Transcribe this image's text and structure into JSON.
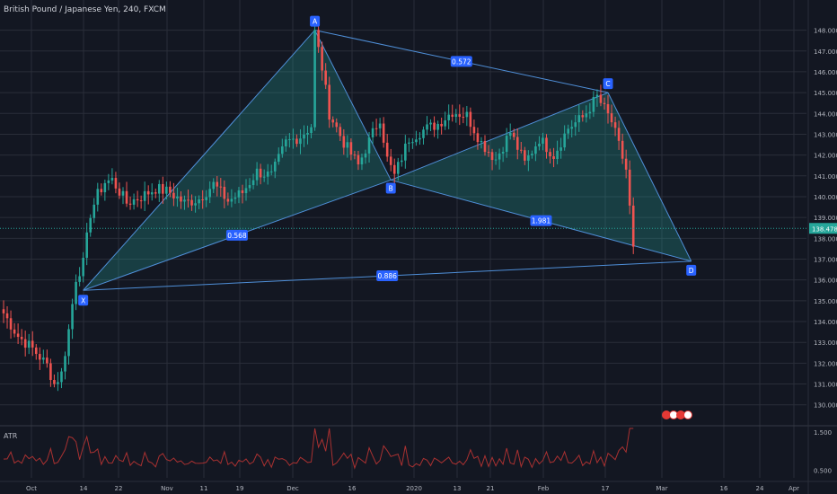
{
  "header": {
    "title": "British Pound / Japanese Yen, 240, FXCM"
  },
  "indicator": {
    "label": "ATR"
  },
  "chart_data": [
    {
      "type": "candlestick",
      "price_axis": {
        "range": [
          129.6,
          148.5
        ],
        "tick_labels": [
          "130.000",
          "131.000",
          "132.000",
          "133.000",
          "134.000",
          "135.000",
          "136.000",
          "137.000",
          "138.000",
          "139.000",
          "140.000",
          "141.000",
          "142.000",
          "143.000",
          "144.000",
          "145.000",
          "146.000",
          "147.000",
          "148.000"
        ]
      },
      "time_axis": {
        "tick_labels": [
          "Oct",
          "14",
          "22",
          "Nov",
          "11",
          "19",
          "Dec",
          "16",
          "2020",
          "13",
          "21",
          "Feb",
          "17",
          "Mar",
          "16",
          "24",
          "Apr"
        ]
      },
      "last_price": "138.478",
      "anchors": [
        {
          "t": 0,
          "close": 134.4
        },
        {
          "t": 4,
          "close": 133.3
        },
        {
          "t": 8,
          "close": 132.7
        },
        {
          "t": 12,
          "close": 131.9
        },
        {
          "t": 14,
          "close": 131.0
        },
        {
          "t": 16,
          "close": 131.5
        },
        {
          "t": 18,
          "close": 133.6
        },
        {
          "t": 20,
          "close": 136.1
        },
        {
          "t": 22,
          "close": 136.8
        },
        {
          "t": 24,
          "close": 139.2
        },
        {
          "t": 26,
          "close": 140.1
        },
        {
          "t": 28,
          "close": 140.7
        },
        {
          "t": 30,
          "close": 140.8
        },
        {
          "t": 34,
          "close": 139.7
        },
        {
          "t": 38,
          "close": 140.0
        },
        {
          "t": 42,
          "close": 140.4
        },
        {
          "t": 46,
          "close": 140.2
        },
        {
          "t": 50,
          "close": 139.7
        },
        {
          "t": 54,
          "close": 139.9
        },
        {
          "t": 58,
          "close": 140.6
        },
        {
          "t": 62,
          "close": 139.8
        },
        {
          "t": 66,
          "close": 140.2
        },
        {
          "t": 70,
          "close": 141.2
        },
        {
          "t": 74,
          "close": 141.0
        },
        {
          "t": 78,
          "close": 142.6
        },
        {
          "t": 82,
          "close": 142.9
        },
        {
          "t": 85,
          "close": 143.4
        },
        {
          "t": 86,
          "close": 147.9
        },
        {
          "t": 88,
          "close": 146.2
        },
        {
          "t": 90,
          "close": 144.0
        },
        {
          "t": 94,
          "close": 142.6
        },
        {
          "t": 98,
          "close": 141.5
        },
        {
          "t": 100,
          "close": 142.3
        },
        {
          "t": 104,
          "close": 143.8
        },
        {
          "t": 106,
          "close": 141.8
        },
        {
          "t": 108,
          "close": 141.0
        },
        {
          "t": 112,
          "close": 142.8
        },
        {
          "t": 116,
          "close": 143.2
        },
        {
          "t": 120,
          "close": 143.5
        },
        {
          "t": 124,
          "close": 144.1
        },
        {
          "t": 128,
          "close": 143.9
        },
        {
          "t": 132,
          "close": 142.6
        },
        {
          "t": 136,
          "close": 141.8
        },
        {
          "t": 140,
          "close": 143.1
        },
        {
          "t": 144,
          "close": 141.6
        },
        {
          "t": 148,
          "close": 142.8
        },
        {
          "t": 152,
          "close": 142.0
        },
        {
          "t": 156,
          "close": 143.3
        },
        {
          "t": 160,
          "close": 143.8
        },
        {
          "t": 164,
          "close": 144.8
        },
        {
          "t": 168,
          "close": 143.6
        },
        {
          "t": 172,
          "close": 141.3
        },
        {
          "t": 174,
          "close": 137.6
        }
      ],
      "harmonic_pattern": {
        "points": [
          {
            "label": "X",
            "t": 22,
            "price": 135.5
          },
          {
            "label": "A",
            "t": 86,
            "price": 148.0
          },
          {
            "label": "B",
            "t": 107,
            "price": 140.8
          },
          {
            "label": "C",
            "t": 167,
            "price": 145.0
          },
          {
            "label": "D",
            "t": 190,
            "price": 136.9
          }
        ],
        "ratios": [
          {
            "from": "X",
            "to": "B",
            "value": "0.568"
          },
          {
            "from": "A",
            "to": "C",
            "value": "0.572"
          },
          {
            "from": "B",
            "to": "D",
            "value": "1.981"
          },
          {
            "from": "X",
            "to": "D",
            "value": "0.886"
          }
        ]
      }
    },
    {
      "type": "line",
      "name": "ATR",
      "y_axis": {
        "range": [
          0.3,
          1.6
        ],
        "tick_labels": [
          "1.500",
          "0.500"
        ]
      }
    }
  ],
  "colors": {
    "background": "#131722",
    "grid": "#2a2e39",
    "up": "#26a69a",
    "down": "#ef5350",
    "pattern_fill": "#26a69a",
    "pattern_line": "#4f8fd8",
    "label_bg": "#2962ff",
    "last_price_bg": "#26a69a",
    "atr_line": "#a93131"
  }
}
